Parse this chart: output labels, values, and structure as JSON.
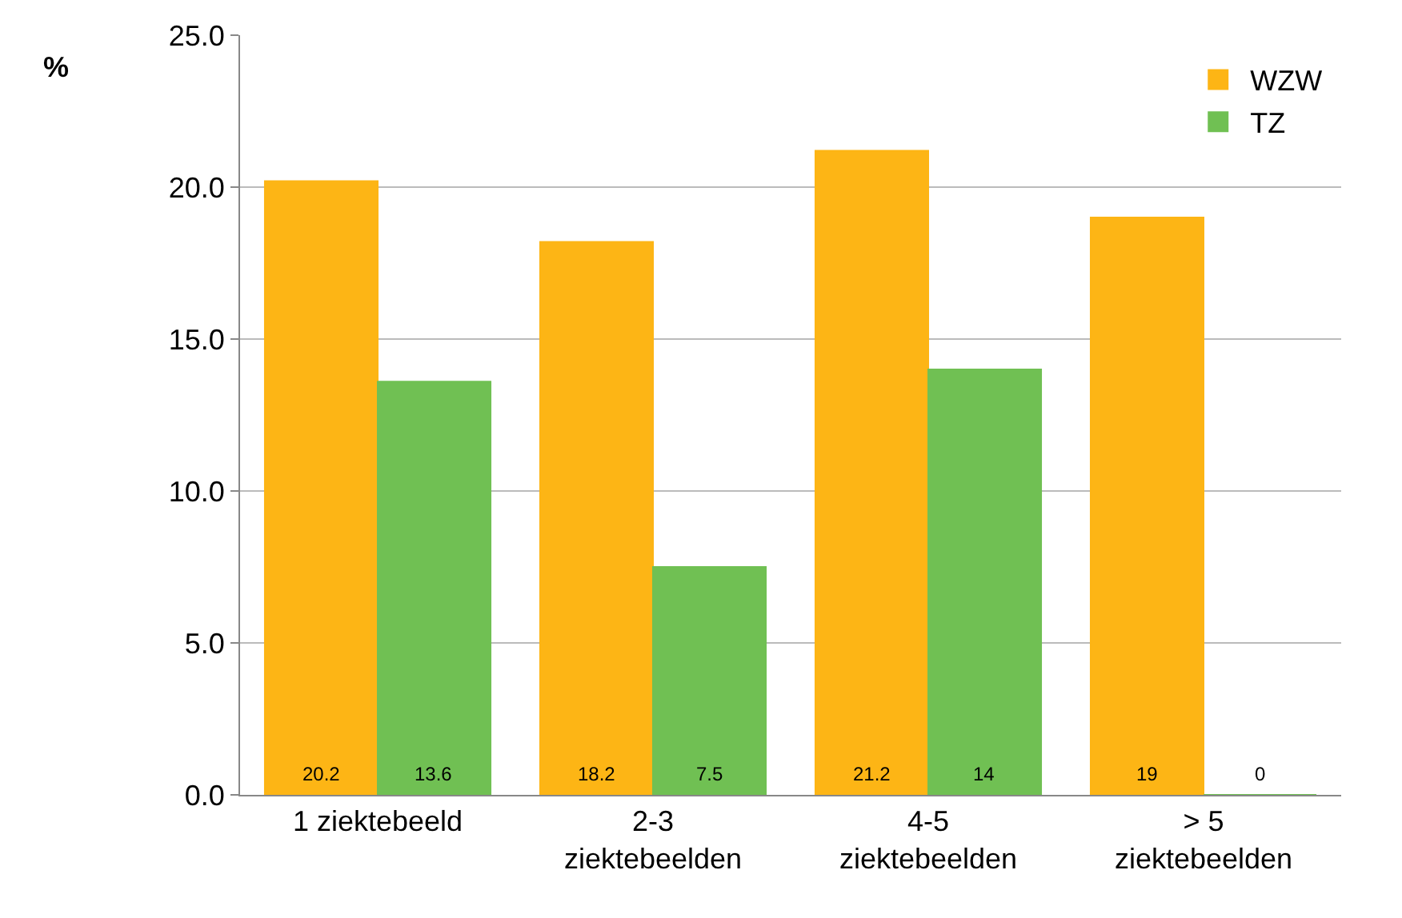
{
  "chart_data": {
    "type": "bar",
    "ylabel": "%",
    "categories": [
      "1 ziektebeeld",
      "2-3\nziektebeelden",
      "4-5\nziektebeelden",
      "> 5\nziektebeelden"
    ],
    "series": [
      {
        "name": "WZW",
        "color": "#fdb515",
        "values": [
          20.2,
          18.2,
          21.2,
          19
        ]
      },
      {
        "name": "TZ",
        "color": "#70c053",
        "values": [
          13.6,
          7.5,
          14,
          0
        ]
      }
    ],
    "ylim": [
      0,
      25
    ],
    "yticks": [
      {
        "value": 0,
        "label": "0.0"
      },
      {
        "value": 5,
        "label": "5.0"
      },
      {
        "value": 10,
        "label": "10.0"
      },
      {
        "value": 15,
        "label": "15.0"
      },
      {
        "value": 20,
        "label": "20.0"
      },
      {
        "value": 25,
        "label": "25.0"
      }
    ],
    "grid": "y",
    "legend": "top right",
    "data_labels": true
  }
}
